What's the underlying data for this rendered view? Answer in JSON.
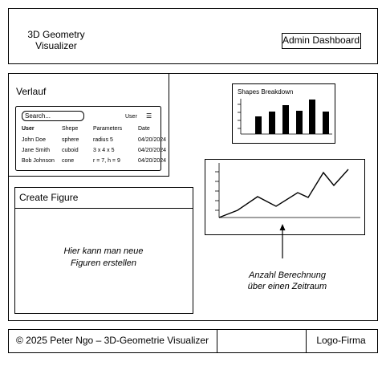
{
  "header": {
    "title_lines": [
      "3D Geometry",
      "Visualizer"
    ],
    "admin_button": "Admin Dashboard"
  },
  "history": {
    "title": "Verlauf",
    "search_placeholder": "Search...",
    "filter_label": "User",
    "filter_icon": "☰",
    "table": {
      "columns": [
        "User",
        "Shepe",
        "Parameters",
        "Date"
      ],
      "rows": [
        [
          "John Doe",
          "sphere",
          "radius 5",
          "04/20/2024"
        ],
        [
          "Jane Smith",
          "cuboid",
          "3 x 4 x 5",
          "04/20/2024"
        ],
        [
          "Bob Johnson",
          "cone",
          "r = 7, h = 9",
          "04/20/2024"
        ]
      ]
    }
  },
  "shapes_chart": {
    "title": "Shapes Breakdown"
  },
  "line_chart": {
    "caption_lines": [
      "Anzahl Berechnung",
      "über einen Zeitraum"
    ]
  },
  "create_figure": {
    "title": "Create Figure",
    "body_lines": [
      "Hier kann man neue",
      "Figuren erstellen"
    ]
  },
  "footer": {
    "copyright": "© 2025 Peter Ngo – 3D-Geometrie Visualizer",
    "logo": "Logo-Firma"
  }
}
